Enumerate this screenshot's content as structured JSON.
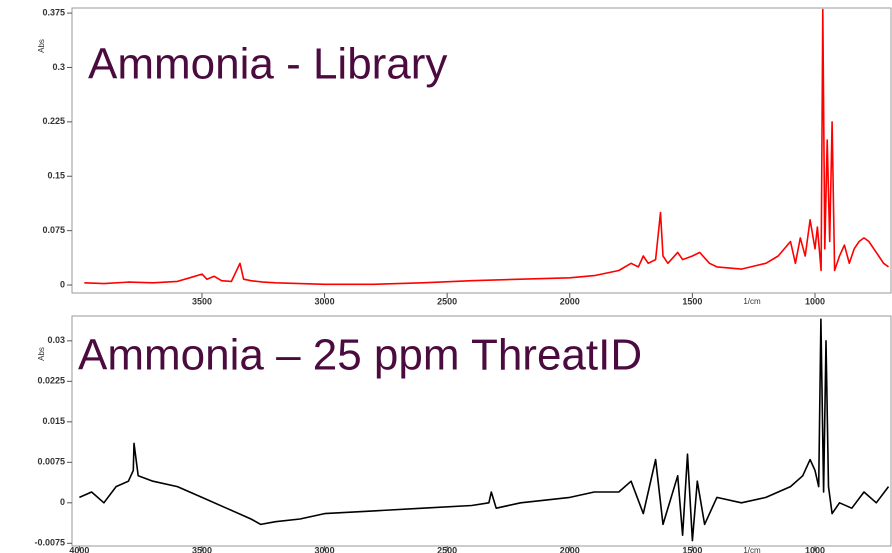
{
  "chart_data": [
    {
      "type": "line",
      "title": "Ammonia - Library",
      "y_label": "Abs",
      "x_label": "1/cm",
      "xlim": [
        4030,
        690
      ],
      "ylim": [
        -0.011,
        0.382
      ],
      "xticks": [
        3500,
        3000,
        2500,
        2000,
        1500,
        1000
      ],
      "yticks": [
        0,
        0.075,
        0.15,
        0.225,
        0.3,
        0.375
      ],
      "grid": false,
      "x": [
        3980,
        3900,
        3800,
        3700,
        3600,
        3550,
        3500,
        3480,
        3450,
        3420,
        3380,
        3345,
        3330,
        3300,
        3250,
        3200,
        3100,
        3000,
        2800,
        2600,
        2400,
        2200,
        2000,
        1900,
        1800,
        1750,
        1720,
        1700,
        1680,
        1650,
        1630,
        1620,
        1600,
        1560,
        1540,
        1500,
        1470,
        1430,
        1400,
        1300,
        1200,
        1150,
        1100,
        1080,
        1060,
        1040,
        1020,
        1000,
        990,
        975,
        968,
        960,
        950,
        940,
        930,
        920,
        900,
        880,
        860,
        840,
        820,
        800,
        780,
        760,
        740,
        720,
        700
      ],
      "series": [
        {
          "name": "Ammonia - Library",
          "color": "#ff0000",
          "values": [
            0.003,
            0.002,
            0.004,
            0.003,
            0.005,
            0.01,
            0.015,
            0.008,
            0.012,
            0.006,
            0.005,
            0.03,
            0.008,
            0.006,
            0.004,
            0.003,
            0.002,
            0.001,
            0.001,
            0.003,
            0.006,
            0.008,
            0.01,
            0.013,
            0.02,
            0.03,
            0.025,
            0.04,
            0.03,
            0.035,
            0.1,
            0.04,
            0.03,
            0.045,
            0.035,
            0.04,
            0.045,
            0.03,
            0.025,
            0.022,
            0.03,
            0.04,
            0.06,
            0.03,
            0.065,
            0.04,
            0.09,
            0.05,
            0.08,
            0.02,
            0.38,
            0.05,
            0.2,
            0.06,
            0.225,
            0.02,
            0.04,
            0.055,
            0.03,
            0.05,
            0.06,
            0.065,
            0.06,
            0.05,
            0.04,
            0.03,
            0.025
          ]
        }
      ]
    },
    {
      "type": "line",
      "title": "Ammonia – 25 ppm ThreatID",
      "y_label": "Abs",
      "x_label": "1/cm",
      "xlim": [
        4030,
        690
      ],
      "ylim": [
        -0.008,
        0.0346
      ],
      "xticks": [
        4000,
        3500,
        3000,
        2500,
        2000,
        1500,
        1000
      ],
      "yticks": [
        -0.0075,
        0,
        0.0075,
        0.015,
        0.0225,
        0.03
      ],
      "grid": false,
      "x": [
        4000,
        3950,
        3900,
        3850,
        3800,
        3780,
        3777,
        3760,
        3700,
        3600,
        3500,
        3400,
        3300,
        3260,
        3200,
        3100,
        3000,
        2800,
        2600,
        2400,
        2330,
        2320,
        2300,
        2200,
        2000,
        1900,
        1800,
        1750,
        1700,
        1650,
        1620,
        1560,
        1540,
        1520,
        1500,
        1480,
        1450,
        1400,
        1300,
        1200,
        1100,
        1050,
        1020,
        1000,
        985,
        976,
        965,
        955,
        945,
        930,
        900,
        850,
        800,
        750,
        700
      ],
      "series": [
        {
          "name": "Ammonia – 25 ppm ThreatID",
          "color": "#000000",
          "values": [
            0.001,
            0.002,
            0.0,
            0.003,
            0.004,
            0.006,
            0.011,
            0.005,
            0.004,
            0.003,
            0.001,
            -0.001,
            -0.003,
            -0.004,
            -0.0035,
            -0.003,
            -0.002,
            -0.0015,
            -0.001,
            -0.0005,
            0.0,
            0.002,
            -0.001,
            0.0,
            0.001,
            0.002,
            0.002,
            0.004,
            -0.002,
            0.008,
            -0.004,
            0.005,
            -0.006,
            0.009,
            -0.007,
            0.004,
            -0.004,
            0.001,
            0.0,
            0.001,
            0.003,
            0.005,
            0.008,
            0.006,
            0.003,
            0.034,
            0.002,
            0.03,
            0.003,
            -0.002,
            0.0,
            -0.001,
            0.002,
            0.0,
            0.003
          ]
        }
      ]
    }
  ]
}
